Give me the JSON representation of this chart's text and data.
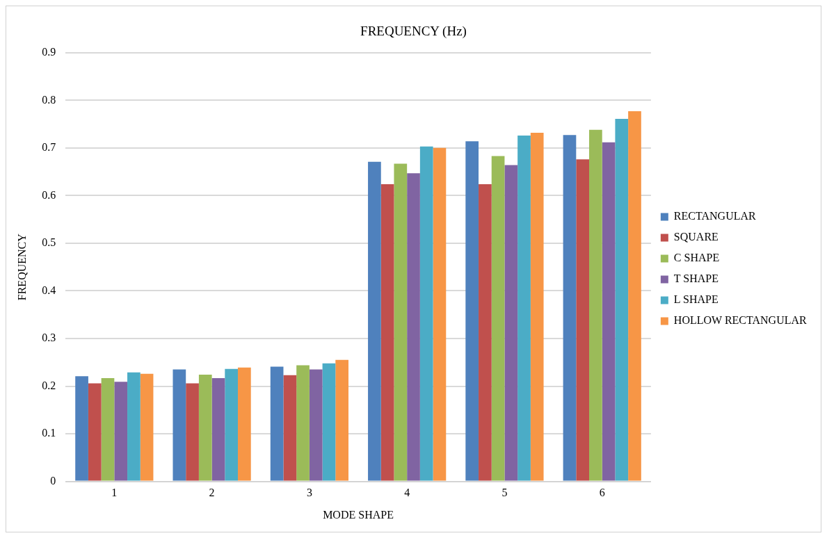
{
  "chart_data": {
    "type": "bar",
    "title": "FREQUENCY (Hz)",
    "xlabel": "MODE SHAPE",
    "ylabel": "FREQUENCY",
    "categories": [
      "1",
      "2",
      "3",
      "4",
      "5",
      "6"
    ],
    "series": [
      {
        "name": "RECTANGULAR",
        "color": "#4f81bd",
        "values": [
          0.221,
          0.235,
          0.241,
          0.671,
          0.714,
          0.727
        ]
      },
      {
        "name": "SQUARE",
        "color": "#c0504d",
        "values": [
          0.206,
          0.206,
          0.223,
          0.624,
          0.624,
          0.676
        ]
      },
      {
        "name": "C SHAPE",
        "color": "#9bbb59",
        "values": [
          0.217,
          0.224,
          0.244,
          0.667,
          0.683,
          0.738
        ]
      },
      {
        "name": "T SHAPE",
        "color": "#8064a2",
        "values": [
          0.209,
          0.217,
          0.235,
          0.647,
          0.664,
          0.712
        ]
      },
      {
        "name": "L SHAPE",
        "color": "#4bacc6",
        "values": [
          0.229,
          0.236,
          0.248,
          0.703,
          0.726,
          0.761
        ]
      },
      {
        "name": "HOLLOW RECTANGULAR",
        "color": "#f79646",
        "values": [
          0.226,
          0.239,
          0.255,
          0.7,
          0.732,
          0.777
        ]
      }
    ],
    "ylim": [
      0,
      0.9
    ],
    "yticks": [
      0,
      0.1,
      0.2,
      0.3,
      0.4,
      0.5,
      0.6,
      0.7,
      0.8,
      0.9
    ],
    "grid": "y",
    "legend": "right"
  }
}
